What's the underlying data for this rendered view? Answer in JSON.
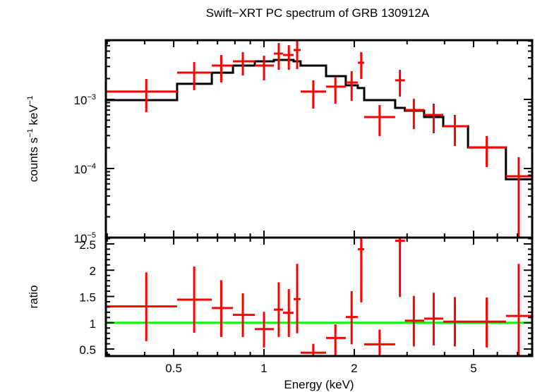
{
  "chart_data": {
    "type": "scatter",
    "title": "Swift−XRT PC spectrum of GRB 130912A",
    "xlabel": "Energy (keV)",
    "xscale": "log",
    "xlim": [
      0.297,
      7.84
    ],
    "xticks": [
      {
        "value": 0.5,
        "label": "0.5"
      },
      {
        "value": 1,
        "label": "1"
      },
      {
        "value": 2,
        "label": "2"
      },
      {
        "value": 5,
        "label": "5"
      }
    ],
    "colors": {
      "data": "#ff0000",
      "model": "#000000",
      "unity": "#00ff00",
      "axes": "#000000"
    },
    "panels": [
      {
        "name": "spectrum",
        "ylabel": "counts s⁻¹ keV⁻¹",
        "ylabel_parts": {
          "base": "counts s",
          "sup1": "−1",
          "mid": " keV",
          "sup2": "−1"
        },
        "yscale": "log",
        "ylim": [
          1e-05,
          0.0072
        ],
        "yticks": [
          {
            "value": 0.001,
            "base": "10",
            "exp": "−3"
          },
          {
            "value": 0.0001,
            "base": "10",
            "exp": "−4"
          },
          {
            "value": 1e-05,
            "base": "10",
            "exp": "−5"
          }
        ],
        "series": [
          {
            "name": "data",
            "points": [
              {
                "xlo": 0.297,
                "xhi": 0.513,
                "x": 0.405,
                "y": 0.0013,
                "ylo": 0.000655,
                "yhi": 0.00198
              },
              {
                "xlo": 0.513,
                "xhi": 0.67,
                "x": 0.585,
                "y": 0.00244,
                "ylo": 0.00136,
                "yhi": 0.00347
              },
              {
                "xlo": 0.67,
                "xhi": 0.788,
                "x": 0.72,
                "y": 0.00309,
                "ylo": 0.00176,
                "yhi": 0.00439
              },
              {
                "xlo": 0.788,
                "xhi": 0.932,
                "x": 0.85,
                "y": 0.00356,
                "ylo": 0.00222,
                "yhi": 0.00482
              },
              {
                "xlo": 0.932,
                "xhi": 1.079,
                "x": 1.0,
                "y": 0.00309,
                "ylo": 0.00189,
                "yhi": 0.00429
              },
              {
                "xlo": 1.079,
                "xhi": 1.157,
                "x": 1.12,
                "y": 0.00461,
                "ylo": 0.00268,
                "yhi": 0.00654
              },
              {
                "xlo": 1.157,
                "xhi": 1.255,
                "x": 1.21,
                "y": 0.0044,
                "ylo": 0.00268,
                "yhi": 0.0061
              },
              {
                "xlo": 1.255,
                "xhi": 1.325,
                "x": 1.29,
                "y": 0.00518,
                "ylo": 0.00275,
                "yhi": 0.0072
              },
              {
                "xlo": 1.325,
                "xhi": 1.611,
                "x": 1.46,
                "y": 0.0013,
                "ylo": 0.000737,
                "yhi": 0.00189
              },
              {
                "xlo": 1.611,
                "xhi": 1.874,
                "x": 1.73,
                "y": 0.00153,
                "ylo": 0.000868,
                "yhi": 0.00212
              },
              {
                "xlo": 1.874,
                "xhi": 2.055,
                "x": 1.96,
                "y": 0.00176,
                "ylo": 0.000954,
                "yhi": 0.00256
              },
              {
                "xlo": 2.055,
                "xhi": 2.159,
                "x": 2.11,
                "y": 0.0034,
                "ylo": 0.00198,
                "yhi": 0.00482
              },
              {
                "xlo": 2.159,
                "xhi": 2.738,
                "x": 2.43,
                "y": 0.000556,
                "ylo": 0.000295,
                "yhi": 0.000829
              },
              {
                "xlo": 2.738,
                "xhi": 2.95,
                "x": 2.84,
                "y": 0.00189,
                "ylo": 0.0011,
                "yhi": 0.00268
              },
              {
                "xlo": 2.95,
                "xhi": 3.42,
                "x": 3.16,
                "y": 0.000703,
                "ylo": 0.000373,
                "yhi": 0.00102
              },
              {
                "xlo": 3.42,
                "xhi": 3.96,
                "x": 3.68,
                "y": 0.000597,
                "ylo": 0.000324,
                "yhi": 0.000868
              },
              {
                "xlo": 3.96,
                "xhi": 4.79,
                "x": 4.33,
                "y": 0.00041,
                "ylo": 0.000212,
                "yhi": 0.000597
              },
              {
                "xlo": 4.79,
                "xhi": 6.41,
                "x": 5.53,
                "y": 0.000202,
                "ylo": 0.000105,
                "yhi": 0.000295
              },
              {
                "xlo": 6.41,
                "xhi": 7.84,
                "x": 7.07,
                "y": 7.73e-05,
                "ylo": 1e-05,
                "yhi": 0.000146
              }
            ]
          },
          {
            "name": "model",
            "steps": [
              {
                "xlo": 0.297,
                "xhi": 0.513,
                "y": 0.000977
              },
              {
                "xlo": 0.513,
                "xhi": 0.67,
                "y": 0.00168
              },
              {
                "xlo": 0.67,
                "xhi": 0.788,
                "y": 0.00244
              },
              {
                "xlo": 0.788,
                "xhi": 0.932,
                "y": 0.00309
              },
              {
                "xlo": 0.932,
                "xhi": 1.079,
                "y": 0.00356
              },
              {
                "xlo": 1.079,
                "xhi": 1.255,
                "y": 0.00373
              },
              {
                "xlo": 1.255,
                "xhi": 1.325,
                "y": 0.00356
              },
              {
                "xlo": 1.325,
                "xhi": 1.611,
                "y": 0.00309
              },
              {
                "xlo": 1.611,
                "xhi": 1.874,
                "y": 0.00217
              },
              {
                "xlo": 1.874,
                "xhi": 2.055,
                "y": 0.0016
              },
              {
                "xlo": 2.055,
                "xhi": 2.159,
                "y": 0.00146
              },
              {
                "xlo": 2.159,
                "xhi": 2.738,
                "y": 0.000977
              },
              {
                "xlo": 2.738,
                "xhi": 2.95,
                "y": 0.000754
              },
              {
                "xlo": 2.95,
                "xhi": 3.42,
                "y": 0.000687
              },
              {
                "xlo": 3.42,
                "xhi": 3.96,
                "y": 0.000556
              },
              {
                "xlo": 3.96,
                "xhi": 4.79,
                "y": 0.00041
              },
              {
                "xlo": 4.79,
                "xhi": 6.41,
                "y": 0.000202
              },
              {
                "xlo": 6.41,
                "xhi": 7.84,
                "y": 7e-05
              }
            ]
          }
        ]
      },
      {
        "name": "ratio",
        "ylabel": "ratio",
        "yscale": "linear",
        "ylim": [
          0.367,
          2.62
        ],
        "yticks": [
          {
            "value": 0.5,
            "label": "0.5"
          },
          {
            "value": 1,
            "label": "1"
          },
          {
            "value": 1.5,
            "label": "1.5"
          },
          {
            "value": 2,
            "label": "2"
          },
          {
            "value": 2.5,
            "label": "2.5"
          }
        ],
        "unity_line": 1,
        "series": [
          {
            "name": "ratio",
            "points": [
              {
                "xlo": 0.297,
                "xhi": 0.513,
                "x": 0.405,
                "y": 1.31,
                "ylo": 0.65,
                "yhi": 1.96
              },
              {
                "xlo": 0.513,
                "xhi": 0.67,
                "x": 0.585,
                "y": 1.44,
                "ylo": 0.81,
                "yhi": 2.07
              },
              {
                "xlo": 0.67,
                "xhi": 0.788,
                "x": 0.72,
                "y": 1.28,
                "ylo": 0.73,
                "yhi": 1.81
              },
              {
                "xlo": 0.788,
                "xhi": 0.932,
                "x": 0.85,
                "y": 1.15,
                "ylo": 0.73,
                "yhi": 1.56
              },
              {
                "xlo": 0.932,
                "xhi": 1.079,
                "x": 1.0,
                "y": 0.88,
                "ylo": 0.53,
                "yhi": 1.21
              },
              {
                "xlo": 1.079,
                "xhi": 1.157,
                "x": 1.12,
                "y": 1.25,
                "ylo": 0.73,
                "yhi": 1.77
              },
              {
                "xlo": 1.157,
                "xhi": 1.255,
                "x": 1.21,
                "y": 1.19,
                "ylo": 0.73,
                "yhi": 1.64
              },
              {
                "xlo": 1.255,
                "xhi": 1.325,
                "x": 1.29,
                "y": 1.45,
                "ylo": 0.8,
                "yhi": 2.12
              },
              {
                "xlo": 1.325,
                "xhi": 1.611,
                "x": 1.46,
                "y": 0.43,
                "ylo": 0.367,
                "yhi": 0.6
              },
              {
                "xlo": 1.611,
                "xhi": 1.874,
                "x": 1.73,
                "y": 0.71,
                "ylo": 0.367,
                "yhi": 0.97
              },
              {
                "xlo": 1.874,
                "xhi": 2.055,
                "x": 1.96,
                "y": 1.11,
                "ylo": 0.59,
                "yhi": 1.6
              },
              {
                "xlo": 2.055,
                "xhi": 2.159,
                "x": 2.11,
                "y": 2.4,
                "ylo": 1.39,
                "yhi": 2.62
              },
              {
                "xlo": 2.159,
                "xhi": 2.738,
                "x": 2.43,
                "y": 0.59,
                "ylo": 0.367,
                "yhi": 0.87
              },
              {
                "xlo": 2.738,
                "xhi": 2.95,
                "x": 2.84,
                "y": 2.56,
                "ylo": 1.49,
                "yhi": 2.62
              },
              {
                "xlo": 2.95,
                "xhi": 3.42,
                "x": 3.16,
                "y": 1.04,
                "ylo": 0.55,
                "yhi": 1.51
              },
              {
                "xlo": 3.42,
                "xhi": 3.96,
                "x": 3.68,
                "y": 1.08,
                "ylo": 0.57,
                "yhi": 1.57
              },
              {
                "xlo": 3.96,
                "xhi": 4.79,
                "x": 4.33,
                "y": 1.02,
                "ylo": 0.55,
                "yhi": 1.49
              },
              {
                "xlo": 4.79,
                "xhi": 6.41,
                "x": 5.53,
                "y": 1.02,
                "ylo": 0.53,
                "yhi": 1.48
              },
              {
                "xlo": 6.41,
                "xhi": 7.84,
                "x": 7.07,
                "y": 1.13,
                "ylo": 0.367,
                "yhi": 2.12
              }
            ]
          }
        ]
      }
    ]
  }
}
